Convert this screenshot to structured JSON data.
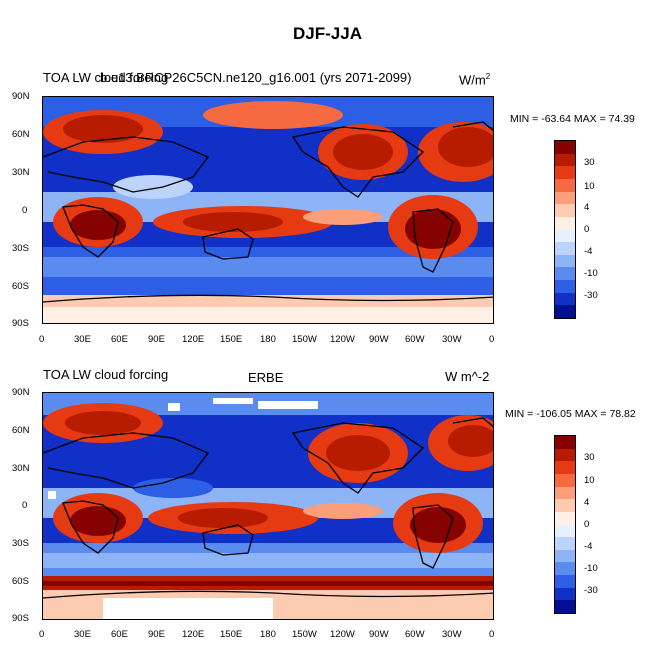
{
  "page_title": "DJF-JJA",
  "panels": [
    {
      "left_title": "TOA LW cloud forcing",
      "overlay_title": "b.e13.BRCP26C5CN.ne120_g16.001 (yrs 2071-2099)",
      "units_base": "W/m",
      "units_sup": "2",
      "min_max": "MIN = -63.64 MAX =  74.39"
    },
    {
      "left_title": "TOA LW cloud forcing",
      "center_title": "ERBE",
      "units": "W m^-2",
      "min_max": "MIN = -106.05 MAX =  78.82"
    }
  ],
  "lat_labels": [
    "90N",
    "60N",
    "30N",
    "0",
    "30S",
    "60S",
    "90S"
  ],
  "lon_labels": [
    "0",
    "30E",
    "60E",
    "90E",
    "120E",
    "150E",
    "180",
    "150W",
    "120W",
    "90W",
    "60W",
    "30W",
    "0"
  ],
  "colorbar": {
    "labels": [
      "30",
      "10",
      "4",
      "0",
      "-4",
      "-10",
      "-30"
    ],
    "colors": [
      "#850200",
      "#b81c00",
      "#e53a12",
      "#f56a40",
      "#fb9e79",
      "#fdcab2",
      "#ffefe5",
      "#e8f0ff",
      "#bcd3fb",
      "#8cb4f7",
      "#5a8cf0",
      "#2c5fe4",
      "#1030c8",
      "#001090"
    ]
  }
}
